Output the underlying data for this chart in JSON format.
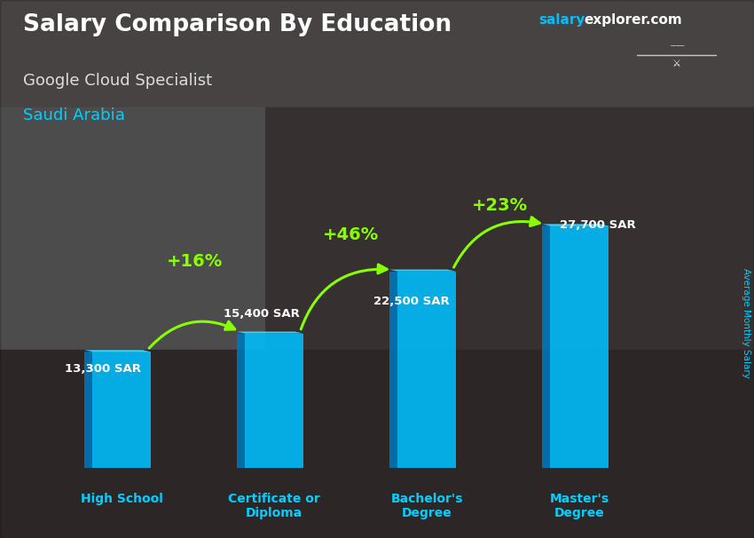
{
  "title": "Salary Comparison By Education",
  "subtitle_job": "Google Cloud Specialist",
  "subtitle_country": "Saudi Arabia",
  "ylabel": "Average Monthly Salary",
  "categories": [
    "High School",
    "Certificate or\nDiploma",
    "Bachelor's\nDegree",
    "Master's\nDegree"
  ],
  "values": [
    13300,
    15400,
    22500,
    27700
  ],
  "value_labels": [
    "13,300 SAR",
    "15,400 SAR",
    "22,500 SAR",
    "27,700 SAR"
  ],
  "pct_labels": [
    "+16%",
    "+46%",
    "+23%"
  ],
  "bar_color_face": "#00BFFF",
  "bar_color_left": "#0077BB",
  "bar_color_top": "#55DDFF",
  "bg_color": "#5a5a6a",
  "title_color": "#FFFFFF",
  "subtitle_job_color": "#DDDDDD",
  "subtitle_country_color": "#00CFFF",
  "pct_color": "#88FF00",
  "value_label_color": "#FFFFFF",
  "cat_label_color": "#00CFFF",
  "watermark_salary_color": "#00BFFF",
  "watermark_explorer_color": "#FFFFFF",
  "flag_bg_color": "#2E8B2E",
  "ylabel_color": "#00CFFF",
  "ylim": [
    0,
    32000
  ],
  "bar_width": 0.38,
  "x_positions": [
    0,
    1,
    2,
    3
  ]
}
